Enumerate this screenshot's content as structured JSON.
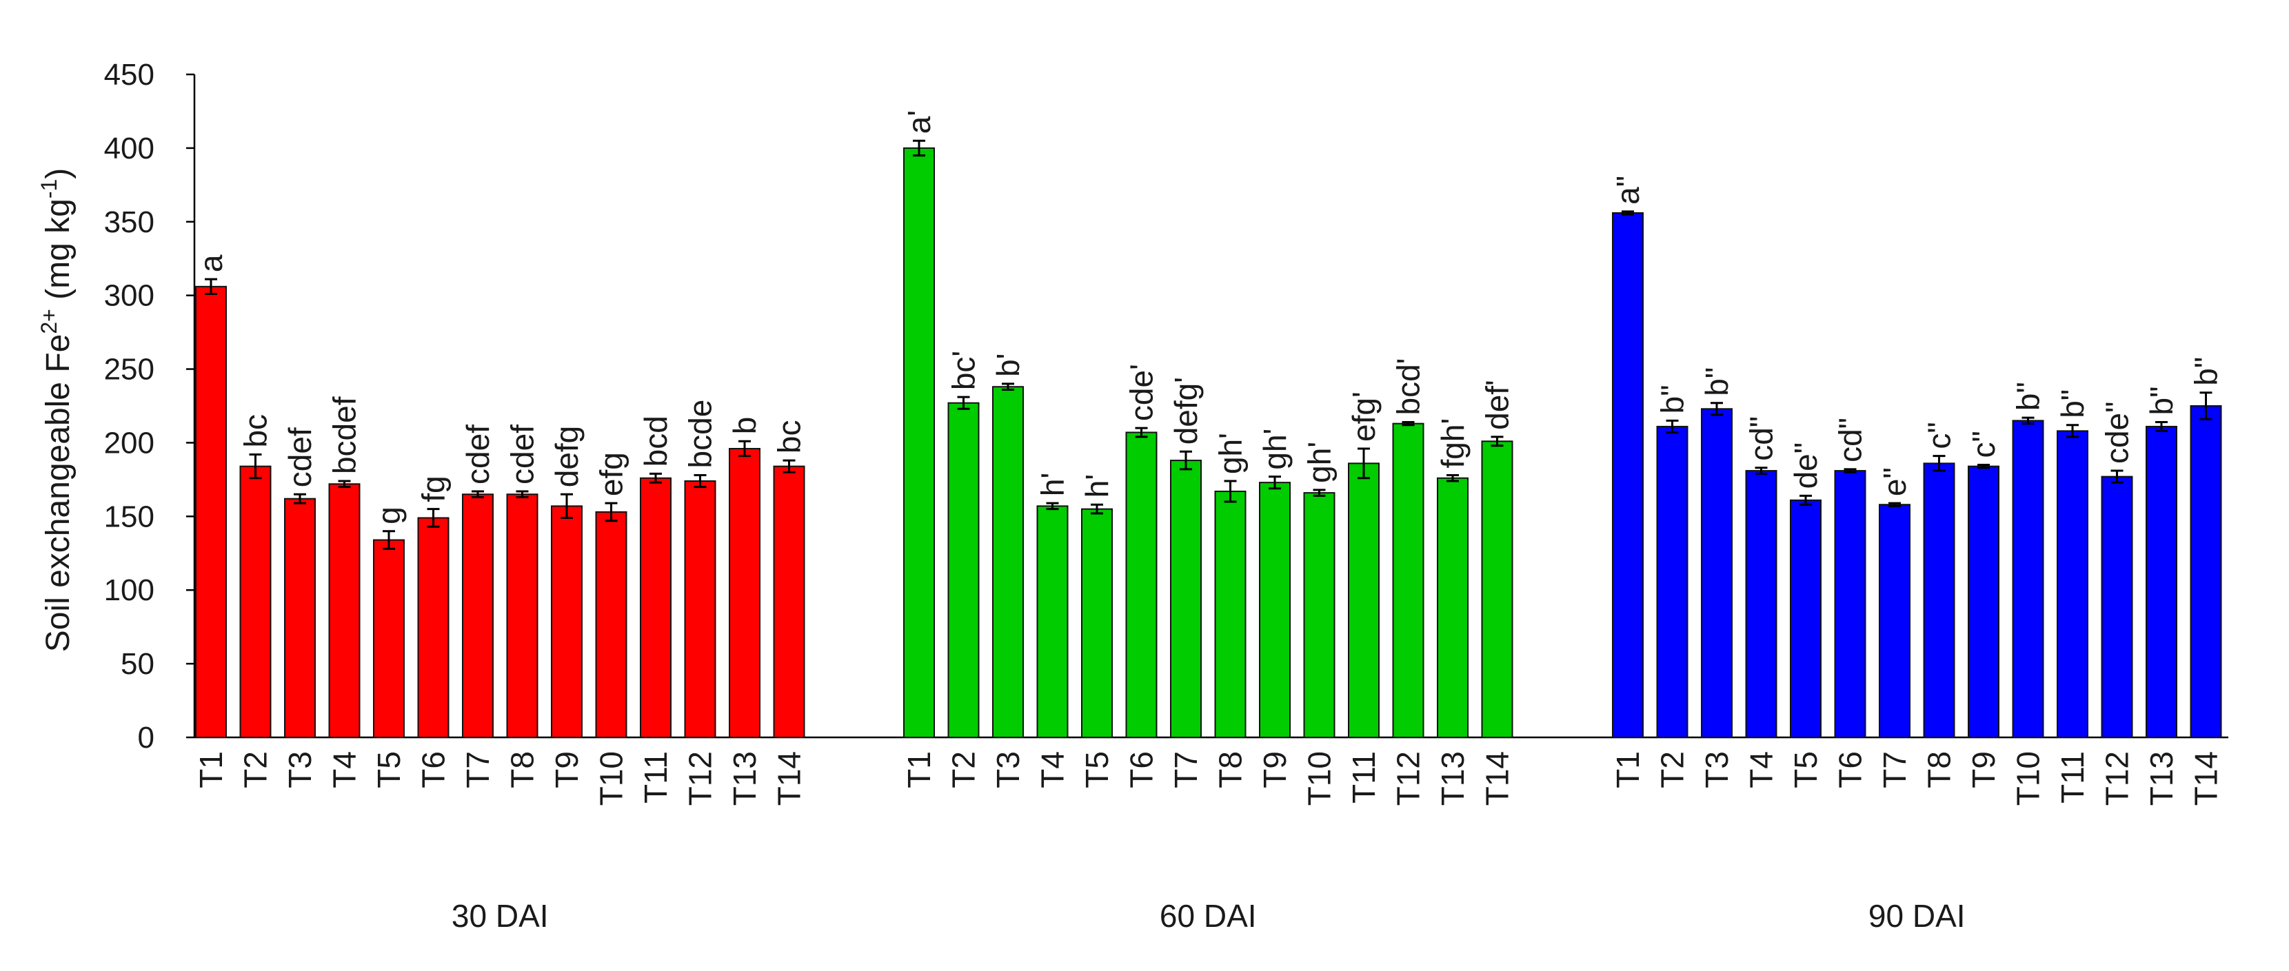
{
  "chart_data": {
    "type": "bar",
    "ylabel": {
      "prefix": "Soil exchangeable Fe",
      "sup1": "2+",
      "middle": " (mg kg",
      "sup2": "-1",
      "suffix": ")"
    },
    "ylim": [
      0,
      450
    ],
    "yticks": [
      0,
      50,
      100,
      150,
      200,
      250,
      300,
      350,
      400,
      450
    ],
    "grid": false,
    "legend": "none",
    "categories": [
      "T1",
      "T2",
      "T3",
      "T4",
      "T5",
      "T6",
      "T7",
      "T8",
      "T9",
      "T10",
      "T11",
      "T12",
      "T13",
      "T14"
    ],
    "groups": [
      {
        "label": "30 DAI",
        "color": "#ff0000",
        "values": [
          306,
          184,
          162,
          172,
          134,
          149,
          165,
          165,
          157,
          153,
          176,
          174,
          196,
          184
        ],
        "errors": [
          5,
          8,
          3,
          2,
          6,
          6,
          2,
          2,
          8,
          6,
          3,
          4,
          5,
          4
        ],
        "letters": [
          "a",
          "bc",
          "cdef",
          "bcdef",
          "g",
          "fg",
          "cdef",
          "cdef",
          "defg",
          "efg",
          "bcd",
          "bcde",
          "b",
          "bc"
        ]
      },
      {
        "label": "60 DAI",
        "color": "#00cc00",
        "values": [
          400,
          227,
          238,
          157,
          155,
          207,
          188,
          167,
          173,
          166,
          186,
          213,
          176,
          201
        ],
        "errors": [
          5,
          4,
          2,
          2,
          3,
          3,
          6,
          7,
          4,
          2,
          10,
          1,
          2,
          3
        ],
        "letters": [
          "a'",
          "bc'",
          "b'",
          "h'",
          "h'",
          "cde'",
          "defg'",
          "gh'",
          "gh'",
          "gh'",
          "efg'",
          "bcd'",
          "fgh'",
          "def'"
        ]
      },
      {
        "label": "90 DAI",
        "color": "#0000ff",
        "values": [
          356,
          211,
          223,
          181,
          161,
          181,
          158,
          186,
          184,
          215,
          208,
          177,
          211,
          225
        ],
        "errors": [
          1,
          4,
          4,
          2,
          3,
          1,
          1,
          5,
          1,
          2,
          4,
          4,
          3,
          9
        ],
        "letters": [
          "a\"",
          "b\"",
          "b\"",
          "cd\"",
          "de\"",
          "cd\"",
          "e\"",
          "c\"",
          "c\"",
          "b\"",
          "b\"",
          "cde\"",
          "b\"",
          "b\""
        ]
      }
    ]
  }
}
